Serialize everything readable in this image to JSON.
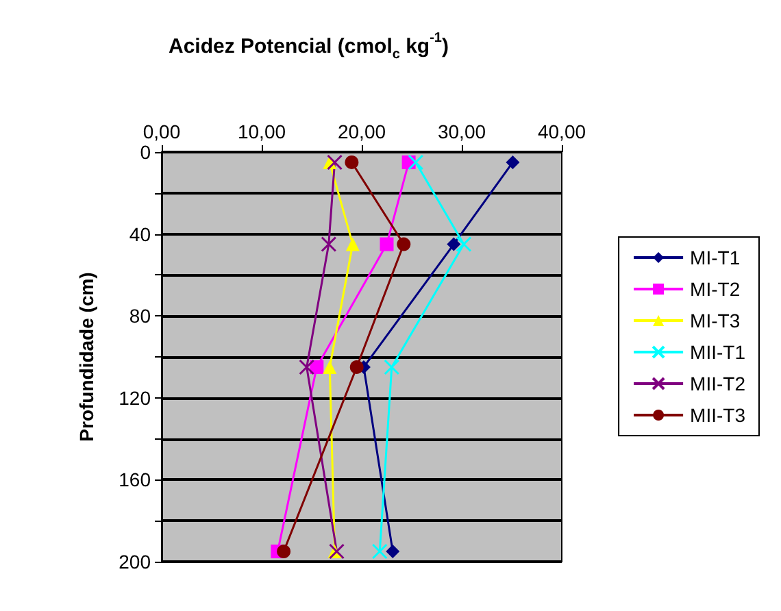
{
  "chart_data": {
    "type": "line",
    "title": "Acidez Potencial (cmol$_{c}$ kg$^{-1}$)",
    "ylabel": "Profundidade (cm)",
    "xlim": [
      0,
      40
    ],
    "xticks": [
      {
        "value": 0,
        "label": "0,00"
      },
      {
        "value": 10,
        "label": "10,00"
      },
      {
        "value": 20,
        "label": "20,00"
      },
      {
        "value": 30,
        "label": "30,00"
      },
      {
        "value": 40,
        "label": "40,00"
      }
    ],
    "ylim": [
      200,
      0
    ],
    "yticks": [
      0,
      {
        "value": 20,
        "label": null
      },
      40,
      {
        "value": 60,
        "label": null
      },
      80,
      {
        "value": 100,
        "label": null
      },
      120,
      {
        "value": 140,
        "label": null
      },
      160,
      {
        "value": 180,
        "label": null
      },
      200
    ],
    "grid": "y",
    "legend": "right",
    "series": [
      {
        "name": "MI-T1",
        "color": "#000080",
        "marker": "diamond",
        "x": [
          35.1,
          29.2,
          20.2,
          23.1
        ],
        "values": [
          5,
          45,
          105,
          195
        ]
      },
      {
        "name": "MI-T2",
        "color": "#ff00ff",
        "marker": "square",
        "x": [
          24.7,
          22.5,
          15.5,
          11.6
        ],
        "values": [
          5,
          45,
          105,
          195
        ]
      },
      {
        "name": "MI-T3",
        "color": "#ffff00",
        "marker": "triangle",
        "x": [
          16.8,
          19.1,
          16.8,
          17.3
        ],
        "values": [
          5,
          45,
          105,
          195
        ]
      },
      {
        "name": "MII-T1",
        "color": "#00ffff",
        "marker": "cross",
        "x": [
          25.4,
          30.2,
          23.0,
          21.8
        ],
        "values": [
          5,
          45,
          105,
          195
        ]
      },
      {
        "name": "MII-T2",
        "color": "#800080",
        "marker": "cross",
        "x": [
          17.3,
          16.7,
          14.5,
          17.5
        ],
        "values": [
          5,
          45,
          105,
          195
        ]
      },
      {
        "name": "MII-T3",
        "color": "#800000",
        "marker": "circle",
        "x": [
          19.0,
          24.2,
          19.5,
          12.2
        ],
        "values": [
          5,
          45,
          105,
          195
        ]
      }
    ]
  }
}
